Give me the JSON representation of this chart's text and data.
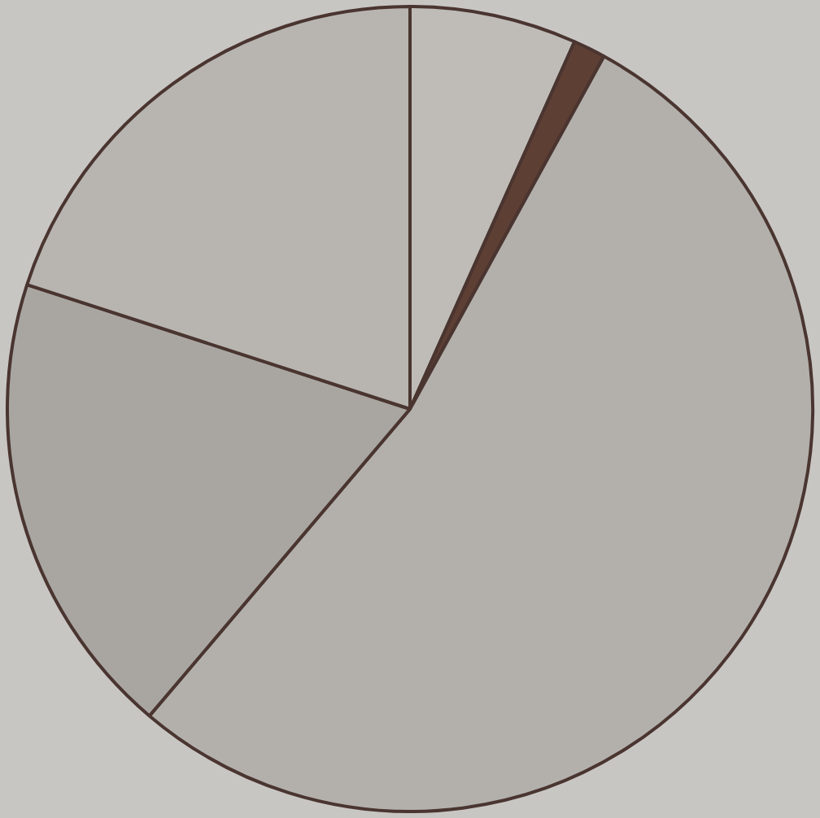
{
  "chart_data": {
    "type": "pie",
    "categories": [
      null,
      null,
      null,
      null,
      null
    ],
    "values": [
      6.7,
      1.3,
      53.2,
      18.8,
      20.0
    ],
    "colors": [
      "#bfbcb8",
      "#5e3f34",
      "#b3b0ac",
      "#a9a6a2",
      "#b8b5b1"
    ],
    "legend": false
  }
}
